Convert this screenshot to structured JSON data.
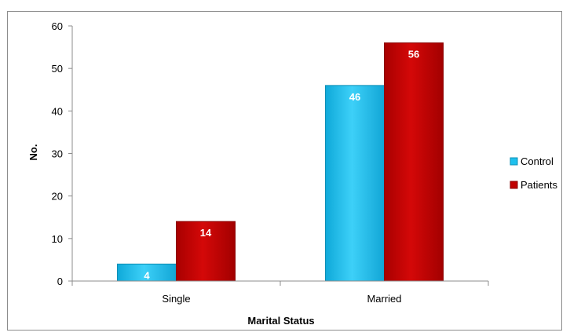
{
  "chart_data": {
    "type": "bar",
    "categories": [
      "Single",
      "Married"
    ],
    "series": [
      {
        "name": "Control",
        "values": [
          4,
          46
        ],
        "color": "#1EC0EE",
        "edge": "#0E8FB6"
      },
      {
        "name": "Patients",
        "values": [
          14,
          56
        ],
        "color": "#C00000",
        "edge": "#8A0000"
      }
    ],
    "xlabel": "Marital Status",
    "ylabel": "No.",
    "ylim": [
      0,
      60
    ],
    "yticks": [
      0,
      10,
      20,
      30,
      40,
      50,
      60
    ],
    "grid": false,
    "legend": "right"
  }
}
